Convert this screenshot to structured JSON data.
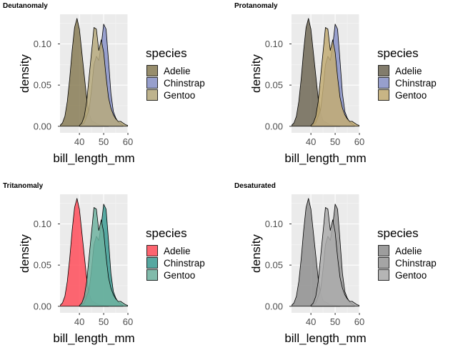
{
  "chart_data": [
    {
      "type": "area",
      "title": "Deutanomaly",
      "xlabel": "bill_length_mm",
      "ylabel": "density",
      "xlim": [
        32,
        60
      ],
      "ylim": [
        -0.008,
        0.136
      ],
      "xticks": [
        40,
        50,
        60
      ],
      "yticks": [
        0.0,
        0.05,
        0.1
      ],
      "ytick_labels": [
        "0.00",
        "0.05",
        "0.10"
      ],
      "legend": {
        "title": "species",
        "position": "right"
      },
      "grid": true,
      "colors": [
        "#887D56",
        "#8892C8",
        "#B6A97C"
      ],
      "series": [
        {
          "name": "Adelie",
          "x": [
            32,
            33,
            34,
            35,
            36,
            37,
            38,
            39,
            40,
            41,
            42,
            43,
            44,
            45,
            46,
            48,
            50,
            52
          ],
          "y": [
            0.001,
            0.004,
            0.012,
            0.03,
            0.058,
            0.092,
            0.12,
            0.131,
            0.118,
            0.09,
            0.062,
            0.034,
            0.016,
            0.007,
            0.005,
            0.002,
            0.001,
            0.0
          ]
        },
        {
          "name": "Chinstrap",
          "x": [
            40,
            42,
            44,
            45,
            46,
            47,
            48,
            49,
            50,
            51,
            52,
            53,
            54,
            55,
            56,
            57,
            58
          ],
          "y": [
            0.0,
            0.004,
            0.02,
            0.045,
            0.075,
            0.085,
            0.08,
            0.098,
            0.124,
            0.118,
            0.08,
            0.04,
            0.018,
            0.01,
            0.005,
            0.003,
            0.001
          ]
        },
        {
          "name": "Gentoo",
          "x": [
            40,
            41,
            42,
            43,
            44,
            45,
            46,
            47,
            48,
            49,
            50,
            51,
            52,
            53,
            54,
            55,
            56,
            57,
            58,
            59,
            60
          ],
          "y": [
            0.001,
            0.004,
            0.012,
            0.03,
            0.06,
            0.09,
            0.12,
            0.118,
            0.092,
            0.105,
            0.09,
            0.06,
            0.035,
            0.022,
            0.014,
            0.009,
            0.006,
            0.006,
            0.004,
            0.002,
            0.001
          ]
        }
      ]
    },
    {
      "type": "area",
      "title": "Protanomaly",
      "xlabel": "bill_length_mm",
      "ylabel": "density",
      "xlim": [
        32,
        60
      ],
      "ylim": [
        -0.008,
        0.136
      ],
      "xticks": [
        40,
        50,
        60
      ],
      "yticks": [
        0.0,
        0.05,
        0.1
      ],
      "ytick_labels": [
        "0.00",
        "0.05",
        "0.10"
      ],
      "legend": {
        "title": "species",
        "position": "right"
      },
      "grid": true,
      "colors": [
        "#706956",
        "#8892C8",
        "#C2AC73"
      ],
      "series": [
        {
          "name": "Adelie",
          "x": [
            32,
            33,
            34,
            35,
            36,
            37,
            38,
            39,
            40,
            41,
            42,
            43,
            44,
            45,
            46,
            48,
            50,
            52
          ],
          "y": [
            0.001,
            0.004,
            0.012,
            0.03,
            0.058,
            0.092,
            0.12,
            0.131,
            0.118,
            0.09,
            0.062,
            0.034,
            0.016,
            0.007,
            0.005,
            0.002,
            0.001,
            0.0
          ]
        },
        {
          "name": "Chinstrap",
          "x": [
            40,
            42,
            44,
            45,
            46,
            47,
            48,
            49,
            50,
            51,
            52,
            53,
            54,
            55,
            56,
            57,
            58
          ],
          "y": [
            0.0,
            0.004,
            0.02,
            0.045,
            0.075,
            0.085,
            0.08,
            0.098,
            0.124,
            0.118,
            0.08,
            0.04,
            0.018,
            0.01,
            0.005,
            0.003,
            0.001
          ]
        },
        {
          "name": "Gentoo",
          "x": [
            40,
            41,
            42,
            43,
            44,
            45,
            46,
            47,
            48,
            49,
            50,
            51,
            52,
            53,
            54,
            55,
            56,
            57,
            58,
            59,
            60
          ],
          "y": [
            0.001,
            0.004,
            0.012,
            0.03,
            0.06,
            0.09,
            0.12,
            0.118,
            0.092,
            0.105,
            0.09,
            0.06,
            0.035,
            0.022,
            0.014,
            0.009,
            0.006,
            0.006,
            0.004,
            0.002,
            0.001
          ]
        }
      ]
    },
    {
      "type": "area",
      "title": "Tritanomaly",
      "xlabel": "bill_length_mm",
      "ylabel": "density",
      "xlim": [
        32,
        60
      ],
      "ylim": [
        -0.008,
        0.136
      ],
      "xticks": [
        40,
        50,
        60
      ],
      "yticks": [
        0.0,
        0.05,
        0.1
      ],
      "ytick_labels": [
        "0.00",
        "0.05",
        "0.10"
      ],
      "legend": {
        "title": "species",
        "position": "right"
      },
      "grid": true,
      "colors": [
        "#FF4D5A",
        "#3C9C94",
        "#6EB3A0"
      ],
      "series": [
        {
          "name": "Adelie",
          "x": [
            32,
            33,
            34,
            35,
            36,
            37,
            38,
            39,
            40,
            41,
            42,
            43,
            44,
            45,
            46,
            48,
            50,
            52
          ],
          "y": [
            0.001,
            0.004,
            0.012,
            0.03,
            0.058,
            0.092,
            0.12,
            0.131,
            0.118,
            0.09,
            0.062,
            0.034,
            0.016,
            0.007,
            0.005,
            0.002,
            0.001,
            0.0
          ]
        },
        {
          "name": "Chinstrap",
          "x": [
            40,
            42,
            44,
            45,
            46,
            47,
            48,
            49,
            50,
            51,
            52,
            53,
            54,
            55,
            56,
            57,
            58
          ],
          "y": [
            0.0,
            0.004,
            0.02,
            0.045,
            0.075,
            0.085,
            0.08,
            0.098,
            0.124,
            0.118,
            0.08,
            0.04,
            0.018,
            0.01,
            0.005,
            0.003,
            0.001
          ]
        },
        {
          "name": "Gentoo",
          "x": [
            40,
            41,
            42,
            43,
            44,
            45,
            46,
            47,
            48,
            49,
            50,
            51,
            52,
            53,
            54,
            55,
            56,
            57,
            58,
            59,
            60
          ],
          "y": [
            0.001,
            0.004,
            0.012,
            0.03,
            0.06,
            0.09,
            0.12,
            0.118,
            0.092,
            0.105,
            0.09,
            0.06,
            0.035,
            0.022,
            0.014,
            0.009,
            0.006,
            0.006,
            0.004,
            0.002,
            0.001
          ]
        }
      ]
    },
    {
      "type": "area",
      "title": "Desaturated",
      "xlabel": "bill_length_mm",
      "ylabel": "density",
      "xlim": [
        32,
        60
      ],
      "ylim": [
        -0.008,
        0.136
      ],
      "xticks": [
        40,
        50,
        60
      ],
      "yticks": [
        0.0,
        0.05,
        0.1
      ],
      "ytick_labels": [
        "0.00",
        "0.05",
        "0.10"
      ],
      "legend": {
        "title": "species",
        "position": "right"
      },
      "grid": true,
      "colors": [
        "#8F8F8F",
        "#999999",
        "#ABABAB"
      ],
      "series": [
        {
          "name": "Adelie",
          "x": [
            32,
            33,
            34,
            35,
            36,
            37,
            38,
            39,
            40,
            41,
            42,
            43,
            44,
            45,
            46,
            48,
            50,
            52
          ],
          "y": [
            0.001,
            0.004,
            0.012,
            0.03,
            0.058,
            0.092,
            0.12,
            0.131,
            0.118,
            0.09,
            0.062,
            0.034,
            0.016,
            0.007,
            0.005,
            0.002,
            0.001,
            0.0
          ]
        },
        {
          "name": "Chinstrap",
          "x": [
            40,
            42,
            44,
            45,
            46,
            47,
            48,
            49,
            50,
            51,
            52,
            53,
            54,
            55,
            56,
            57,
            58
          ],
          "y": [
            0.0,
            0.004,
            0.02,
            0.045,
            0.075,
            0.085,
            0.08,
            0.098,
            0.124,
            0.118,
            0.08,
            0.04,
            0.018,
            0.01,
            0.005,
            0.003,
            0.001
          ]
        },
        {
          "name": "Gentoo",
          "x": [
            40,
            41,
            42,
            43,
            44,
            45,
            46,
            47,
            48,
            49,
            50,
            51,
            52,
            53,
            54,
            55,
            56,
            57,
            58,
            59,
            60
          ],
          "y": [
            0.001,
            0.004,
            0.012,
            0.03,
            0.06,
            0.09,
            0.12,
            0.118,
            0.092,
            0.105,
            0.09,
            0.06,
            0.035,
            0.022,
            0.014,
            0.009,
            0.006,
            0.006,
            0.004,
            0.002,
            0.001
          ]
        }
      ]
    }
  ]
}
